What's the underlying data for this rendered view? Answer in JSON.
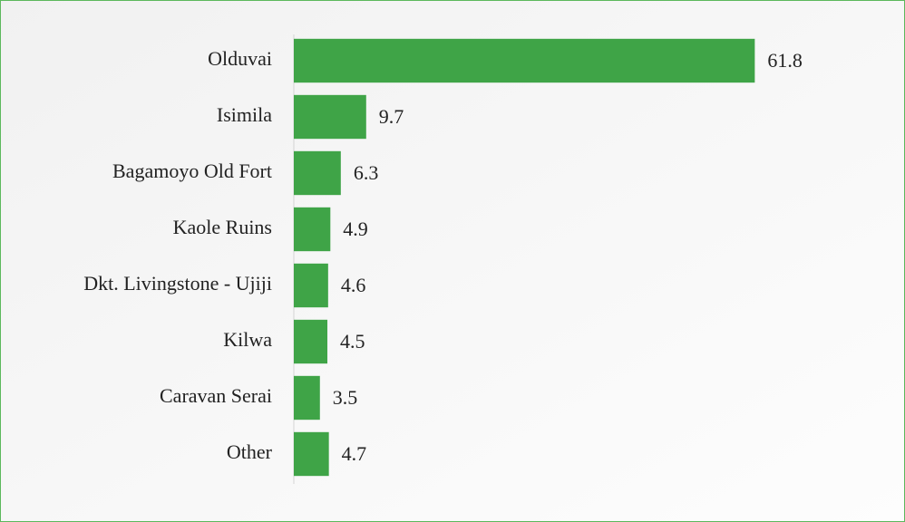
{
  "chart_data": {
    "type": "bar",
    "orientation": "horizontal",
    "categories": [
      "Olduvai",
      "Isimila",
      "Bagamoyo Old Fort",
      "Kaole Ruins",
      "Dkt. Livingstone - Ujiji",
      "Kilwa",
      "Caravan Serai",
      "Other"
    ],
    "values": [
      61.8,
      9.7,
      6.3,
      4.9,
      4.6,
      4.5,
      3.5,
      4.7
    ],
    "color": "#3fa447",
    "xlim": [
      0,
      62
    ]
  }
}
